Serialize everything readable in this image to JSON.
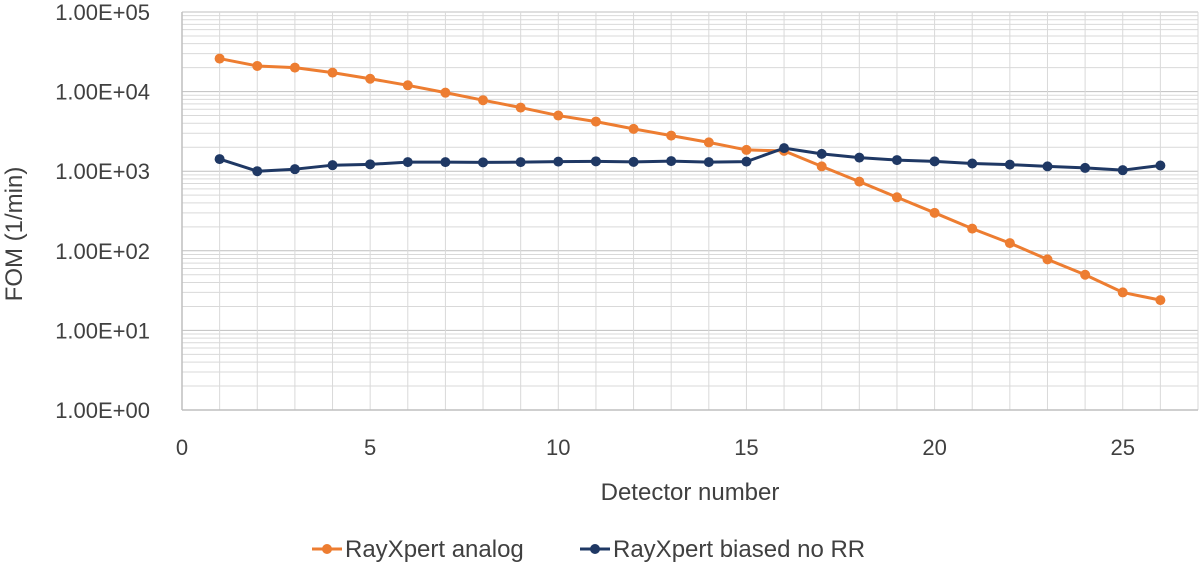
{
  "chart_data": {
    "type": "line",
    "title": "",
    "xlabel": "Detector number",
    "ylabel": "FOM (1/min)",
    "xlim": [
      0,
      27
    ],
    "xticks": [
      0,
      5,
      10,
      15,
      20,
      25
    ],
    "xtick_labels": [
      "0",
      "5",
      "10",
      "15",
      "20",
      "25"
    ],
    "yscale": "log",
    "ylim": [
      1,
      100000
    ],
    "yticks": [
      1,
      10,
      100,
      1000,
      10000,
      100000
    ],
    "ytick_labels": [
      "1.00E+00",
      "1.00E+01",
      "1.00E+02",
      "1.00E+03",
      "1.00E+04",
      "1.00E+05"
    ],
    "grid": true,
    "legend_position": "bottom",
    "x": [
      1,
      2,
      3,
      4,
      5,
      6,
      7,
      8,
      9,
      10,
      11,
      12,
      13,
      14,
      15,
      16,
      17,
      18,
      19,
      20,
      21,
      22,
      23,
      24,
      25,
      26
    ],
    "series": [
      {
        "name": "RayXpert analog",
        "color": "#ED7D31",
        "values": [
          26000,
          21000,
          20000,
          17300,
          14500,
          12000,
          9700,
          7800,
          6300,
          5000,
          4200,
          3400,
          2800,
          2300,
          1850,
          1800,
          1150,
          740,
          470,
          300,
          190,
          125,
          78,
          50,
          30,
          24
        ]
      },
      {
        "name": "RayXpert biased no RR",
        "color": "#1F3864",
        "values": [
          1420,
          1000,
          1060,
          1190,
          1220,
          1300,
          1300,
          1290,
          1300,
          1320,
          1330,
          1310,
          1340,
          1300,
          1320,
          1950,
          1650,
          1480,
          1380,
          1330,
          1250,
          1210,
          1150,
          1100,
          1030,
          1180
        ]
      }
    ]
  }
}
